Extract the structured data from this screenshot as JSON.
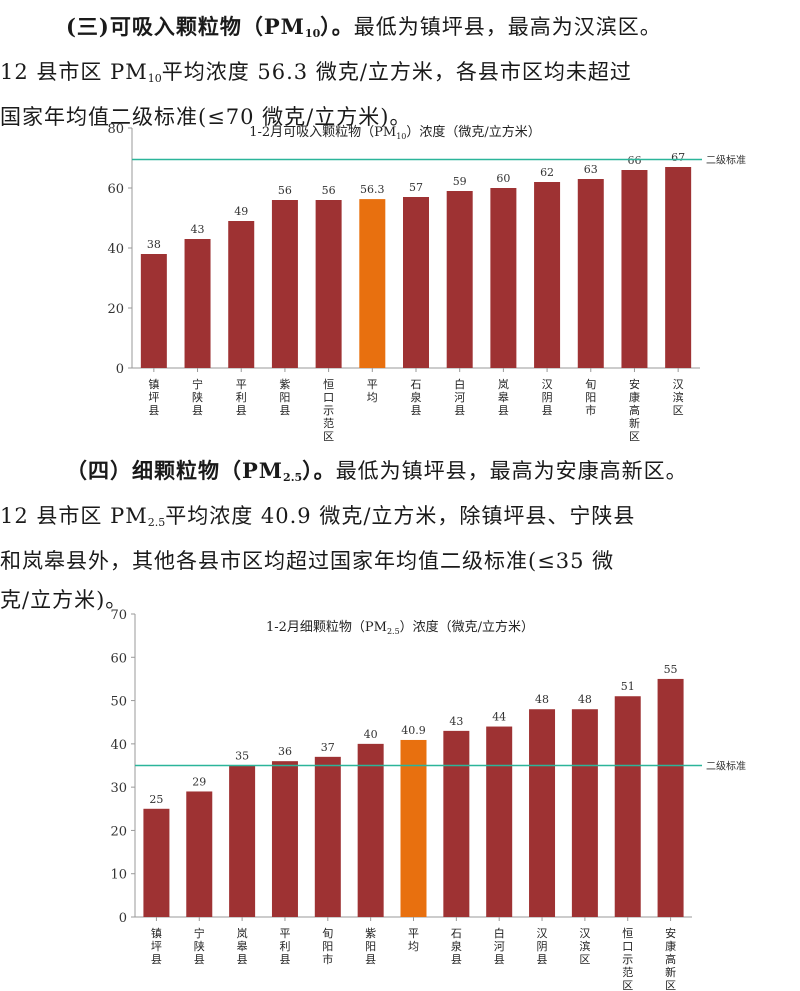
{
  "section3": {
    "heading": "(三)可吸入颗粒物（PM",
    "heading_sub": "10",
    "heading_end": "）。",
    "line1_rest": "最低为镇坪县，最高为汉滨区。",
    "line2_a": "12 县市区 PM",
    "line2_sub": "10",
    "line2_b": "平均浓度 56.3 微克/立方米，各县市区均未超过",
    "line3": "国家年均值二级标准(≤70 微克/立方米)。"
  },
  "section4": {
    "heading": "（四）细颗粒物（PM",
    "heading_sub": "2.5",
    "heading_end": "）。",
    "line1_rest": "最低为镇坪县，最高为安康高新区。",
    "line2_a": "12 县市区 PM",
    "line2_sub": "2.5",
    "line2_b": "平均浓度 40.9 微克/立方米，除镇坪县、宁陕县",
    "line3": "和岚皋县外，其他各县市区均超过国家年均值二级标准(≤35 微",
    "line4": "克/立方米)。"
  },
  "chart_data": [
    {
      "type": "bar",
      "title_a": "1-2月可吸入颗粒物（PM",
      "title_sub": "10",
      "title_b": "）浓度（微克/立方米）",
      "categories": [
        "镇坪县",
        "宁陕县",
        "平利县",
        "紫阳县",
        "恒口示范区",
        "平均",
        "石泉县",
        "白河县",
        "岚皋县",
        "汉阴县",
        "旬阳市",
        "安康高新区",
        "汉滨区"
      ],
      "values": [
        38,
        43,
        49,
        56,
        56,
        56.3,
        57,
        59,
        60,
        62,
        63,
        66,
        67
      ],
      "value_labels": [
        "38",
        "43",
        "49",
        "56",
        "56",
        "56.3",
        "57",
        "59",
        "60",
        "62",
        "63",
        "66",
        "67"
      ],
      "highlight_category": "平均",
      "ylim": [
        0,
        80
      ],
      "yticks": [
        0,
        20,
        40,
        60,
        80
      ],
      "ytick_labels": [
        "0",
        "20",
        "40",
        "60",
        "80"
      ],
      "reference_line": {
        "value": 69.5,
        "label": "二级标准"
      },
      "colors": {
        "bar": "#9e3233",
        "highlight": "#e8700f",
        "reference": "#2bb59a",
        "axis": "#999999"
      }
    },
    {
      "type": "bar",
      "title_a": "1-2月细颗粒物（PM",
      "title_sub": "2.5",
      "title_b": "）浓度（微克/立方米）",
      "categories": [
        "镇坪县",
        "宁陕县",
        "岚皋县",
        "平利县",
        "旬阳市",
        "紫阳县",
        "平均",
        "石泉县",
        "白河县",
        "汉阴县",
        "汉滨区",
        "恒口示范区",
        "安康高新区"
      ],
      "values": [
        25,
        29,
        35,
        36,
        37,
        40,
        40.9,
        43,
        44,
        48,
        48,
        51,
        55
      ],
      "value_labels": [
        "25",
        "29",
        "35",
        "36",
        "37",
        "40",
        "40.9",
        "43",
        "44",
        "48",
        "48",
        "51",
        "55"
      ],
      "highlight_category": "平均",
      "ylim": [
        0,
        70
      ],
      "yticks": [
        0,
        10,
        20,
        30,
        40,
        50,
        60,
        70
      ],
      "ytick_labels": [
        "0",
        "10",
        "20",
        "30",
        "40",
        "50",
        "60",
        "70"
      ],
      "reference_line": {
        "value": 35,
        "label": "二级标准"
      },
      "colors": {
        "bar": "#9e3233",
        "highlight": "#e8700f",
        "reference": "#2bb59a",
        "axis": "#999999"
      }
    }
  ]
}
